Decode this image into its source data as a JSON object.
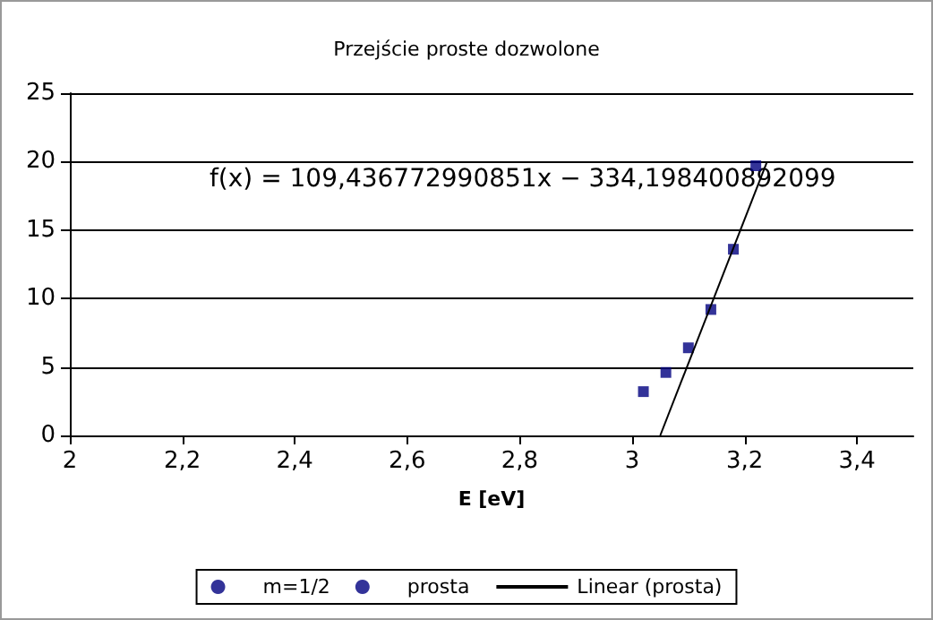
{
  "chart_data": {
    "type": "scatter",
    "title": "Przejście proste dozwolone",
    "xlabel": "E [eV]",
    "xlim": [
      2,
      3.5
    ],
    "xticks": [
      {
        "value": 2,
        "label": "2"
      },
      {
        "value": 2.2,
        "label": "2,2"
      },
      {
        "value": 2.4,
        "label": "2,4"
      },
      {
        "value": 2.6,
        "label": "2,6"
      },
      {
        "value": 2.8,
        "label": "2,8"
      },
      {
        "value": 3,
        "label": "3"
      },
      {
        "value": 3.2,
        "label": "3,2"
      },
      {
        "value": 3.4,
        "label": "3,4"
      }
    ],
    "ylim": [
      0,
      25
    ],
    "yticks": [
      0,
      5,
      10,
      15,
      20,
      25
    ],
    "grid": "y",
    "legend": "bottom",
    "annotations": [
      "f(x) = 109,436772990851x − 334,198400892099"
    ],
    "series": [
      {
        "name": "m=1/2",
        "color": "#000080",
        "marker": "circle"
      },
      {
        "name": "prosta",
        "color": "#000080",
        "marker": "square",
        "x": [
          3.02,
          3.06,
          3.1,
          3.14,
          3.18,
          3.22
        ],
        "values": [
          3.2,
          4.6,
          6.4,
          9.2,
          13.6,
          19.7
        ]
      },
      {
        "name": "Linear (prosta)",
        "type": "line",
        "color": "#000000",
        "x": [
          3.05,
          3.24
        ],
        "values": [
          0,
          20
        ]
      }
    ]
  }
}
